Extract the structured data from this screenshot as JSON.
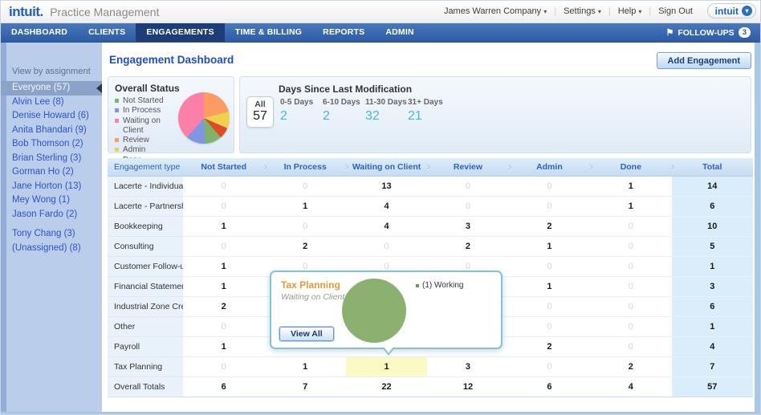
{
  "brand": {
    "logo": "intuit.",
    "product": "Practice Management",
    "badge_logo": "intuit"
  },
  "header": {
    "company_menu": "James Warren Company",
    "settings": "Settings",
    "help": "Help",
    "sign_out": "Sign Out"
  },
  "nav": {
    "tabs": [
      {
        "label": "DASHBOARD",
        "active": false
      },
      {
        "label": "CLIENTS",
        "active": false
      },
      {
        "label": "ENGAGEMENTS",
        "active": true
      },
      {
        "label": "TIME & BILLING",
        "active": false
      },
      {
        "label": "REPORTS",
        "active": false
      },
      {
        "label": "ADMIN",
        "active": false
      }
    ],
    "follow_ups": {
      "label": "FOLLOW-UPS",
      "count": "3"
    }
  },
  "sidebar": {
    "heading": "View by assignment",
    "items": [
      {
        "label": "Everyone (57)",
        "selected": true,
        "gap": false
      },
      {
        "label": "Alvin Lee (8)",
        "selected": false,
        "gap": false
      },
      {
        "label": "Denise Howard (6)",
        "selected": false,
        "gap": false
      },
      {
        "label": "Anita Bhandari (9)",
        "selected": false,
        "gap": false
      },
      {
        "label": "Bob Thomson (2)",
        "selected": false,
        "gap": false
      },
      {
        "label": "Brian Sterling (3)",
        "selected": false,
        "gap": false
      },
      {
        "label": "Gorman Ho (2)",
        "selected": false,
        "gap": false
      },
      {
        "label": "Jane Horton (13)",
        "selected": false,
        "gap": false
      },
      {
        "label": "Mey Wong (1)",
        "selected": false,
        "gap": false
      },
      {
        "label": "Jason Fardo (2)",
        "selected": false,
        "gap": false
      },
      {
        "label": "Tony Chang (3)",
        "selected": false,
        "gap": true
      },
      {
        "label": "(Unassigned) (8)",
        "selected": false,
        "gap": false
      }
    ]
  },
  "main": {
    "title": "Engagement Dashboard",
    "add_button": "Add Engagement",
    "overall_status": {
      "title": "Overall Status",
      "legend": [
        {
          "label": "Not Started",
          "color": "#80b36a"
        },
        {
          "label": "In Process",
          "color": "#7e96e3"
        },
        {
          "label": "Waiting on Client",
          "color": "#fb7fa9"
        },
        {
          "label": "Review",
          "color": "#fb9c63"
        },
        {
          "label": "Admin",
          "color": "#eed24f"
        },
        {
          "label": "Done",
          "color": "#dd4b25"
        }
      ],
      "slices": [
        {
          "label": "Review",
          "value": 12,
          "color": "#fb9c63"
        },
        {
          "label": "Admin",
          "value": 6,
          "color": "#eed24f"
        },
        {
          "label": "Done",
          "value": 4,
          "color": "#dd4b25"
        },
        {
          "label": "Not Started",
          "value": 6,
          "color": "#80b36a"
        },
        {
          "label": "In Process",
          "value": 7,
          "color": "#7e96e3"
        },
        {
          "label": "Waiting on Client",
          "value": 22,
          "color": "#fb7fa9"
        }
      ]
    },
    "days_since": {
      "title": "Days Since Last Modification",
      "all_label": "All",
      "all_value": "57",
      "buckets": [
        {
          "label": "0-5 Days",
          "value": "2"
        },
        {
          "label": "6-10 Days",
          "value": "2"
        },
        {
          "label": "11-30 Days",
          "value": "32"
        },
        {
          "label": "31+ Days",
          "value": "21"
        }
      ]
    },
    "table": {
      "headers": [
        "Engagement type",
        "Not Started",
        "In Process",
        "Waiting on Client",
        "Review",
        "Admin",
        "Done",
        "Total"
      ],
      "rows": [
        {
          "label": "Lacerte - Individual",
          "values": [
            "0",
            "0",
            "13",
            "0",
            "0",
            "1",
            "14"
          ],
          "highlight": -1,
          "totals": false
        },
        {
          "label": "Lacerte - Partnership",
          "values": [
            "0",
            "1",
            "4",
            "0",
            "0",
            "1",
            "6"
          ],
          "highlight": -1,
          "totals": false
        },
        {
          "label": "Bookkeeping",
          "values": [
            "1",
            "0",
            "4",
            "3",
            "2",
            "0",
            "10"
          ],
          "highlight": -1,
          "totals": false
        },
        {
          "label": "Consulting",
          "values": [
            "0",
            "2",
            "0",
            "2",
            "1",
            "0",
            "5"
          ],
          "highlight": -1,
          "totals": false
        },
        {
          "label": "Customer Follow-up",
          "values": [
            "1",
            "0",
            "0",
            "0",
            "0",
            "0",
            "1"
          ],
          "highlight": -1,
          "totals": false
        },
        {
          "label": "Financial Statemen...",
          "values": [
            "1",
            "",
            "",
            "",
            "1",
            "0",
            "3"
          ],
          "highlight": -1,
          "totals": false
        },
        {
          "label": "Industrial Zone Credit",
          "values": [
            "2",
            "",
            "",
            "",
            "0",
            "0",
            "6"
          ],
          "highlight": -1,
          "totals": false
        },
        {
          "label": "Other",
          "values": [
            "0",
            "",
            "",
            "",
            "0",
            "0",
            "1"
          ],
          "highlight": -1,
          "totals": false
        },
        {
          "label": "Payroll",
          "values": [
            "1",
            "",
            "",
            "",
            "2",
            "0",
            "4"
          ],
          "highlight": -1,
          "totals": false
        },
        {
          "label": "Tax Planning",
          "values": [
            "0",
            "1",
            "1",
            "3",
            "0",
            "2",
            "7"
          ],
          "highlight": 2,
          "totals": false
        },
        {
          "label": "Overall Totals",
          "values": [
            "6",
            "7",
            "22",
            "12",
            "6",
            "4",
            "57"
          ],
          "highlight": -1,
          "totals": true
        }
      ]
    },
    "tooltip": {
      "title": "Tax Planning",
      "subtitle": "Waiting on Client",
      "legend_label": "(1) Working",
      "legend_color": "#6a9a43",
      "pie_color": "#8cb06f",
      "view_all": "View All"
    }
  }
}
